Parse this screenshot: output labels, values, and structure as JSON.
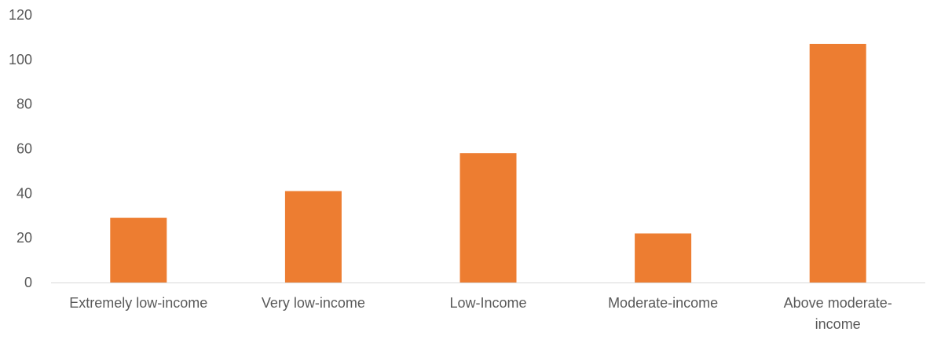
{
  "chart_data": {
    "type": "bar",
    "categories": [
      [
        "Extremely low-income"
      ],
      [
        "Very low-income"
      ],
      [
        "Low-Income"
      ],
      [
        "Moderate-income"
      ],
      [
        "Above moderate-",
        "income"
      ]
    ],
    "values": [
      29,
      41,
      58,
      22,
      107
    ],
    "title": "",
    "xlabel": "",
    "ylabel": "",
    "ylim": [
      0,
      120
    ],
    "yticks": [
      0,
      20,
      40,
      60,
      80,
      100,
      120
    ],
    "grid": false,
    "legend": "none",
    "bar_color": "#ED7D31",
    "axis_color": "#D9D9D9",
    "label_color": "#595959"
  }
}
